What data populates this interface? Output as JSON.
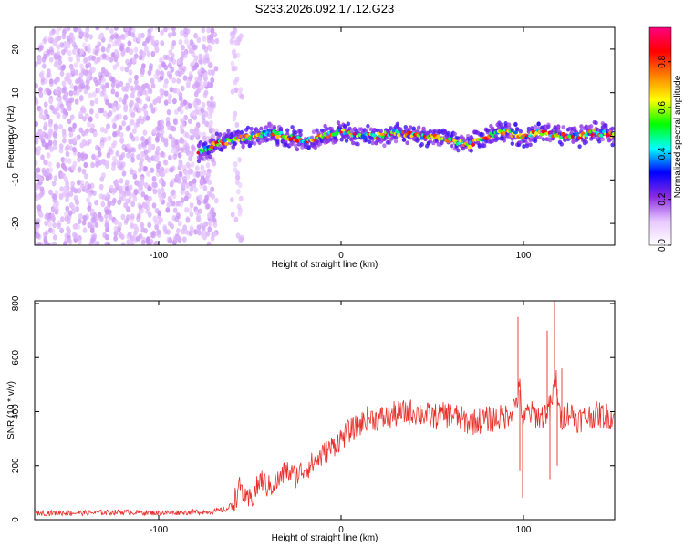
{
  "chart_data": [
    {
      "id": "spectrogram",
      "type": "heatmap",
      "title": "S233.2026.092.17.12.G23",
      "xlabel": "Height of straight line (km)",
      "ylabel": "Frequency (Hz)",
      "xlim": [
        -168,
        150
      ],
      "ylim": [
        -25,
        25
      ],
      "xticks": [
        -100,
        0,
        100
      ],
      "yticks": [
        -20,
        -10,
        0,
        10,
        20
      ],
      "colorbar": {
        "label": "Normalized spectral amplitude",
        "range": [
          0,
          0.95
        ],
        "ticks": [
          "0.0",
          "0.2",
          "0.4",
          "0.6",
          "0.8"
        ],
        "tick_values": [
          0,
          0.2,
          0.4,
          0.6,
          0.8
        ],
        "colors": [
          "#ffffff",
          "#e8c8ff",
          "#8a2be2",
          "#0000ff",
          "#00ffff",
          "#00ff00",
          "#ffff00",
          "#ff8000",
          "#ff0000",
          "#ff0080"
        ]
      },
      "signal_track": {
        "x": [
          -78,
          -70,
          -60,
          -50,
          -40,
          -30,
          -20,
          -10,
          0,
          10,
          20,
          30,
          40,
          50,
          60,
          70,
          80,
          90,
          100,
          110,
          120,
          130,
          140,
          150
        ],
        "y": [
          -4,
          -2,
          -1,
          0,
          1,
          0,
          -1,
          0,
          1,
          0,
          0,
          1,
          0,
          0,
          -1,
          -2,
          0,
          1,
          0,
          1,
          0,
          0,
          1,
          0
        ]
      },
      "noise_regions": [
        {
          "x_range": [
            -168,
            -68
          ],
          "level": "high"
        },
        {
          "x_range": [
            -60,
            -54
          ],
          "level": "low"
        }
      ]
    },
    {
      "id": "snr",
      "type": "line",
      "xlabel": "Height of straight line (km)",
      "ylabel": "SNR (10 * v/v)",
      "xlim": [
        -168,
        150
      ],
      "ylim": [
        0,
        810
      ],
      "xticks": [
        -100,
        0,
        100
      ],
      "yticks": [
        0,
        200,
        400,
        600,
        800
      ],
      "series_color": "#e8302a",
      "series": [
        {
          "name": "SNR",
          "x": [
            -168,
            -140,
            -120,
            -100,
            -80,
            -70,
            -62,
            -58,
            -55,
            -52,
            -48,
            -44,
            -40,
            -35,
            -30,
            -25,
            -20,
            -15,
            -10,
            -5,
            0,
            5,
            10,
            15,
            20,
            25,
            30,
            40,
            50,
            60,
            70,
            80,
            90,
            95,
            98,
            100,
            102,
            105,
            110,
            115,
            118,
            120,
            125,
            130,
            140,
            150
          ],
          "y": [
            25,
            25,
            28,
            25,
            28,
            30,
            40,
            80,
            125,
            60,
            90,
            150,
            120,
            140,
            180,
            160,
            190,
            210,
            240,
            270,
            300,
            330,
            350,
            380,
            370,
            380,
            390,
            400,
            380,
            390,
            360,
            370,
            380,
            420,
            480,
            350,
            400,
            390,
            380,
            420,
            520,
            370,
            400,
            370,
            390,
            380
          ]
        }
      ],
      "spikes": [
        {
          "x": 97,
          "y": 750
        },
        {
          "x": 98,
          "y": 180
        },
        {
          "x": 99.5,
          "y": 80
        },
        {
          "x": 113,
          "y": 700
        },
        {
          "x": 114.5,
          "y": 150
        },
        {
          "x": 117,
          "y": 810
        },
        {
          "x": 118.5,
          "y": 200
        },
        {
          "x": 121,
          "y": 560
        }
      ]
    }
  ]
}
